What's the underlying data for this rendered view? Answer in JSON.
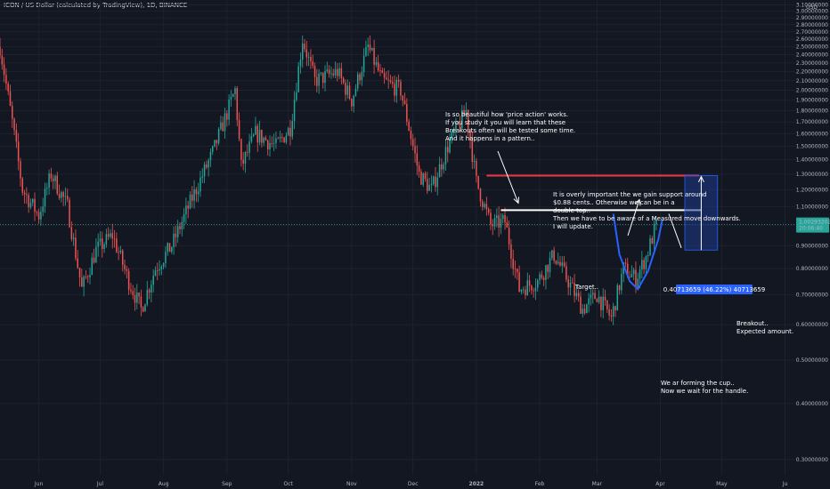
{
  "header": {
    "title": "ICON / US Dollar (calculated by TradingView), 1D, BINANCE"
  },
  "currency": "USD",
  "colors": {
    "background": "#131722",
    "up": "#26a69a",
    "down": "#ef5350",
    "grid": "#1e222d",
    "target_line": "#f23645",
    "support_line": "#ffffff",
    "cup": "#2962ff",
    "measure_fill": "#1e3a8a",
    "price_tag": "#26a69a"
  },
  "price_tag": {
    "price": "1.00293202",
    "countdown": "20:06:40"
  },
  "measure": {
    "label": "0.40713659 (46.22%) 40713659"
  },
  "annotations": {
    "a1": [
      "Is so beautiful how 'price action' works.",
      "If you study it you will learn that these",
      "Breakouts often will be tested some time.",
      "And it happens in a pattern.."
    ],
    "a2": [
      "It is overly important the we gain support around",
      "$0.88 cents.. Otherwise we can be in a",
      "double top..",
      "Then we have to be aware of a Measured move downwards.",
      "I will update."
    ],
    "target": "Target..",
    "breakout": [
      "Breakout..",
      "Expected amount."
    ],
    "cup": [
      "We ar forming the cup..",
      "Now we wait for the handle."
    ]
  },
  "chart_data": {
    "type": "candlestick",
    "y_scale": "log",
    "ylim": [
      0.27,
      3.15
    ],
    "xlim": [
      "2021-05-13",
      "2022-06-06"
    ],
    "y_ticks": [
      "3.10000000",
      "3.00000000",
      "2.90000000",
      "2.80000000",
      "2.70000000",
      "2.60000000",
      "2.50000000",
      "2.40000000",
      "2.30000000",
      "2.20000000",
      "2.10000000",
      "2.00000000",
      "1.90000000",
      "1.80000000",
      "1.70000000",
      "1.60000000",
      "1.50000000",
      "1.40000000",
      "1.30000000",
      "1.20000000",
      "1.10000000",
      "1.00000000",
      "0.90000000",
      "0.80000000",
      "0.70000000",
      "0.60000000",
      "0.50000000",
      "0.40000000",
      "0.30000000"
    ],
    "x_ticks": [
      "Jun",
      "Jul",
      "Aug",
      "Sep",
      "Oct",
      "Nov",
      "Dec",
      "2022",
      "Feb",
      "Mar",
      "Apr",
      "May",
      "Ju"
    ],
    "price_path": [
      [
        "2021-05-13",
        2.5
      ],
      [
        "2021-05-19",
        1.7
      ],
      [
        "2021-05-24",
        1.2
      ],
      [
        "2021-06-01",
        1.05
      ],
      [
        "2021-06-07",
        1.3
      ],
      [
        "2021-06-15",
        1.1
      ],
      [
        "2021-06-22",
        0.72
      ],
      [
        "2021-06-29",
        0.88
      ],
      [
        "2021-07-07",
        0.95
      ],
      [
        "2021-07-15",
        0.75
      ],
      [
        "2021-07-21",
        0.65
      ],
      [
        "2021-07-28",
        0.8
      ],
      [
        "2021-08-05",
        0.9
      ],
      [
        "2021-08-15",
        1.15
      ],
      [
        "2021-08-25",
        1.45
      ],
      [
        "2021-09-05",
        2.0
      ],
      [
        "2021-09-08",
        1.35
      ],
      [
        "2021-09-15",
        1.6
      ],
      [
        "2021-09-25",
        1.5
      ],
      [
        "2021-10-02",
        1.65
      ],
      [
        "2021-10-08",
        2.6
      ],
      [
        "2021-10-14",
        2.1
      ],
      [
        "2021-10-25",
        2.2
      ],
      [
        "2021-11-01",
        1.9
      ],
      [
        "2021-11-09",
        2.5
      ],
      [
        "2021-11-16",
        2.1
      ],
      [
        "2021-11-25",
        2.0
      ],
      [
        "2021-12-04",
        1.3
      ],
      [
        "2021-12-10",
        1.2
      ],
      [
        "2021-12-18",
        1.5
      ],
      [
        "2021-12-27",
        1.8
      ],
      [
        "2022-01-01",
        1.25
      ],
      [
        "2022-01-08",
        1.0
      ],
      [
        "2022-01-15",
        1.02
      ],
      [
        "2022-01-22",
        0.72
      ],
      [
        "2022-01-31",
        0.75
      ],
      [
        "2022-02-08",
        0.86
      ],
      [
        "2022-02-15",
        0.75
      ],
      [
        "2022-02-22",
        0.65
      ],
      [
        "2022-03-01",
        0.7
      ],
      [
        "2022-03-08",
        0.62
      ],
      [
        "2022-03-14",
        0.8
      ],
      [
        "2022-03-20",
        0.76
      ],
      [
        "2022-03-25",
        0.85
      ],
      [
        "2022-03-30",
        1.0
      ]
    ],
    "levels": {
      "target": 1.29,
      "support": 1.08,
      "last_price": 1.00293202
    },
    "measure": {
      "from": 0.88,
      "to": 1.29,
      "change": 0.40713659,
      "change_pct": 46.22
    }
  }
}
